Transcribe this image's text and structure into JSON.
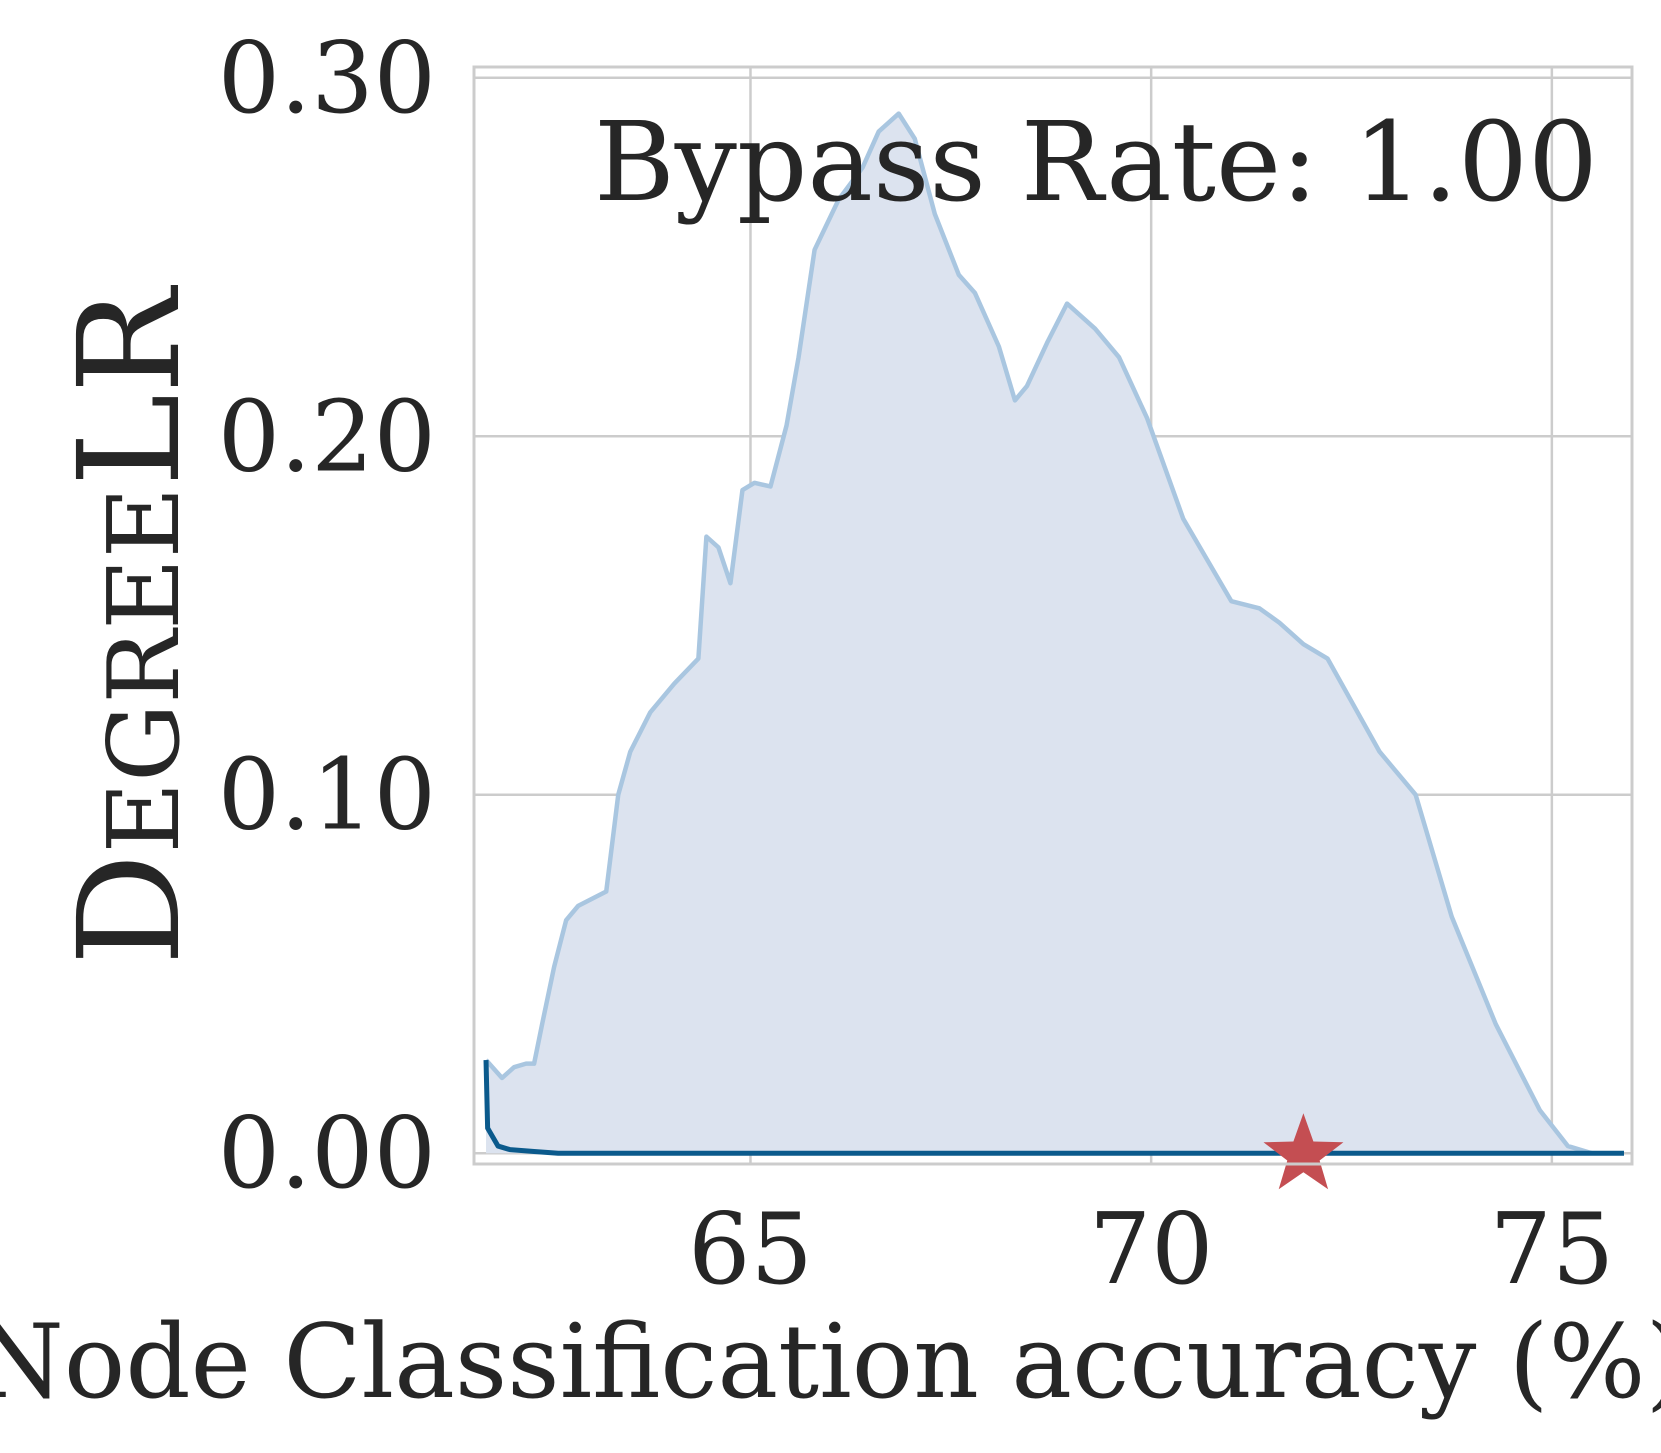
{
  "chart_data": {
    "type": "area",
    "title": "",
    "xlabel": "Node Classification accuracy (%)",
    "ylabel": "DegreeLR",
    "annotation": "Bypass Rate: 1.00",
    "xlim": [
      61.55,
      76.0
    ],
    "ylim": [
      -0.003,
      0.303
    ],
    "x_ticks": [
      65,
      70,
      75
    ],
    "x_tick_labels": [
      "65",
      "70",
      "75"
    ],
    "y_ticks": [
      0.0,
      0.1,
      0.2,
      0.3
    ],
    "y_tick_labels": [
      "0.00",
      "0.10",
      "0.20",
      "0.30"
    ],
    "grid": true,
    "legend": "none",
    "colors": {
      "fill": "#dce3ef",
      "fill_line": "#a9c6e0",
      "line": "#0b5a8c",
      "marker": "#c44e52",
      "grid": "#cccccc",
      "text": "#262626"
    },
    "series": [
      {
        "kind": "density-area",
        "x": [
          61.7,
          61.9,
          62.05,
          62.2,
          62.3,
          62.4,
          62.55,
          62.7,
          62.85,
          63.2,
          63.35,
          63.5,
          63.75,
          64.05,
          64.35,
          64.45,
          64.6,
          64.75,
          64.9,
          65.05,
          65.25,
          65.45,
          65.6,
          65.8,
          66.1,
          66.4,
          66.6,
          66.85,
          67.05,
          67.3,
          67.6,
          67.8,
          68.1,
          68.3,
          68.45,
          68.7,
          68.95,
          69.3,
          69.6,
          69.95,
          70.4,
          71.0,
          71.35,
          71.6,
          71.9,
          72.2,
          72.55,
          72.85,
          73.3,
          73.75,
          74.3,
          74.85,
          75.2,
          75.5,
          75.9
        ],
        "y": [
          0.026,
          0.021,
          0.024,
          0.025,
          0.025,
          0.036,
          0.052,
          0.065,
          0.069,
          0.073,
          0.1,
          0.112,
          0.123,
          0.131,
          0.138,
          0.172,
          0.169,
          0.159,
          0.185,
          0.187,
          0.186,
          0.203,
          0.222,
          0.252,
          0.266,
          0.275,
          0.285,
          0.29,
          0.283,
          0.262,
          0.245,
          0.24,
          0.225,
          0.21,
          0.214,
          0.226,
          0.237,
          0.23,
          0.222,
          0.205,
          0.177,
          0.154,
          0.152,
          0.148,
          0.142,
          0.138,
          0.124,
          0.112,
          0.1,
          0.066,
          0.036,
          0.012,
          0.002,
          0.0,
          0.0
        ]
      },
      {
        "kind": "line",
        "x": [
          61.7,
          61.72,
          61.85,
          62.0,
          62.3,
          62.6,
          63.5,
          65.0,
          70.0,
          75.0,
          75.9
        ],
        "y": [
          0.026,
          0.007,
          0.002,
          0.001,
          0.0005,
          0.0,
          0.0,
          0.0,
          0.0,
          0.0,
          0.0
        ]
      }
    ],
    "marker": {
      "shape": "star",
      "x": 71.9,
      "y": 0.0
    }
  }
}
